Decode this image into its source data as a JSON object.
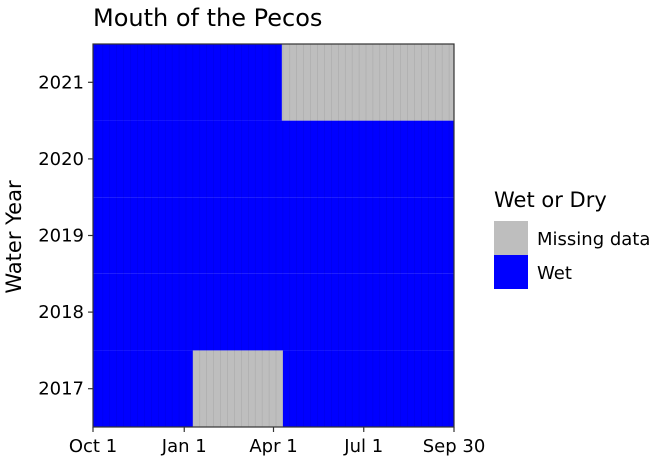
{
  "chart_data": {
    "type": "heatmap",
    "title": "Mouth of the Pecos",
    "ylabel": "Water Year",
    "xlabel": "",
    "x_axis": {
      "type": "day-of-water-year",
      "start": "Oct 1",
      "end": "Sep 30",
      "tick_labels": [
        "Oct 1",
        "Jan 1",
        "Apr 1",
        "Jul 1",
        "Sep 30"
      ]
    },
    "y_axis": {
      "categories": [
        "2017",
        "2018",
        "2019",
        "2020",
        "2021"
      ]
    },
    "legend": {
      "title": "Wet or Dry",
      "placement": "right",
      "entries": [
        {
          "label": "Missing data",
          "color": "#BEBEBE"
        },
        {
          "label": "Wet",
          "color": "#0000FF"
        }
      ]
    },
    "series": [
      {
        "water_year": "2017",
        "segments": [
          {
            "start": "Oct 1",
            "end": "Jan 9",
            "status": "Wet"
          },
          {
            "start": "Jan 10",
            "end": "Apr 10",
            "status": "Missing data"
          },
          {
            "start": "Apr 11",
            "end": "Sep 30",
            "status": "Wet"
          }
        ]
      },
      {
        "water_year": "2018",
        "segments": [
          {
            "start": "Oct 1",
            "end": "Sep 30",
            "status": "Wet"
          }
        ]
      },
      {
        "water_year": "2019",
        "segments": [
          {
            "start": "Oct 1",
            "end": "Sep 30",
            "status": "Wet"
          }
        ]
      },
      {
        "water_year": "2020",
        "segments": [
          {
            "start": "Oct 1",
            "end": "Sep 30",
            "status": "Wet"
          }
        ]
      },
      {
        "water_year": "2021",
        "segments": [
          {
            "start": "Oct 1",
            "end": "Apr 9",
            "status": "Wet"
          },
          {
            "start": "Apr 10",
            "end": "Sep 30",
            "status": "Missing data"
          }
        ]
      }
    ],
    "grid": false
  }
}
